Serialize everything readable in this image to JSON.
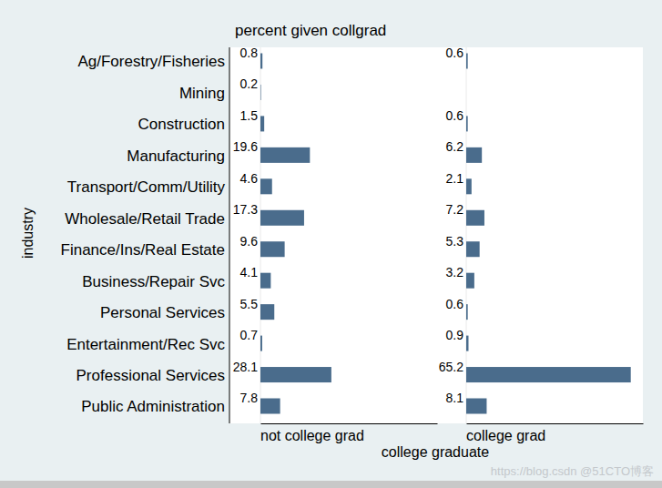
{
  "chart_data": {
    "type": "bar",
    "orientation": "horizontal",
    "title": "percent given collgrad",
    "y_label": "industry",
    "x_label": "college graduate",
    "categories": [
      "Ag/Forestry/Fisheries",
      "Mining",
      "Construction",
      "Manufacturing",
      "Transport/Comm/Utility",
      "Wholesale/Retail Trade",
      "Finance/Ins/Real Estate",
      "Business/Repair Svc",
      "Personal Services",
      "Entertainment/Rec Svc",
      "Professional Services",
      "Public Administration"
    ],
    "series": [
      {
        "name": "not college grad",
        "values": [
          0.8,
          0.2,
          1.5,
          19.6,
          4.6,
          17.3,
          9.6,
          4.1,
          5.5,
          0.7,
          28.1,
          7.8
        ]
      },
      {
        "name": "college grad",
        "values": [
          0.6,
          null,
          0.6,
          6.2,
          2.1,
          7.2,
          5.3,
          3.2,
          0.6,
          0.9,
          65.2,
          8.1
        ]
      }
    ],
    "color": "#4a6c8c",
    "xlim": [
      0,
      70
    ],
    "data_labels": true,
    "tick_labels": "y",
    "annotations": [
      "https://blog.csdn @51CTO博客"
    ]
  }
}
